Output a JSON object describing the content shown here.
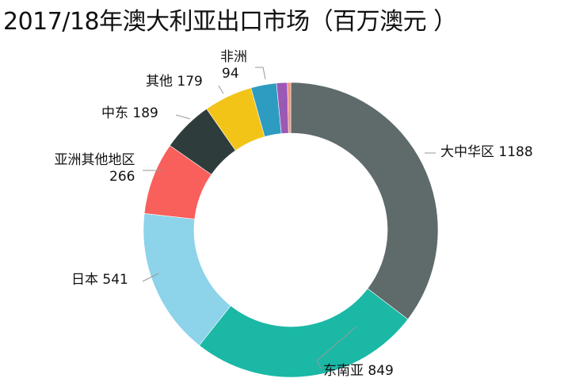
{
  "chart_data": {
    "type": "pie",
    "donut": true,
    "title": "2017/18年澳大利亚出口市场（百万澳元 ）",
    "slices": [
      {
        "label": "大中华区",
        "value": 1188,
        "color": "#5f6a6a"
      },
      {
        "label": "东南亚",
        "value": 849,
        "color": "#1bb8a6"
      },
      {
        "label": "日本",
        "value": 541,
        "color": "#8dd3ea"
      },
      {
        "label": "亚洲其他地区",
        "value": 266,
        "color": "#f95f5b"
      },
      {
        "label": "中东",
        "value": 189,
        "color": "#2e3c3c"
      },
      {
        "label": "其他",
        "value": 179,
        "color": "#f2c418"
      },
      {
        "label": "非洲",
        "value": 94,
        "color": "#2e9cc0"
      },
      {
        "label": "",
        "value": 40,
        "color": "#9b59b6"
      },
      {
        "label": "",
        "value": 12,
        "color": "#f0937a"
      }
    ],
    "start": "top",
    "direction": "clockwise"
  }
}
